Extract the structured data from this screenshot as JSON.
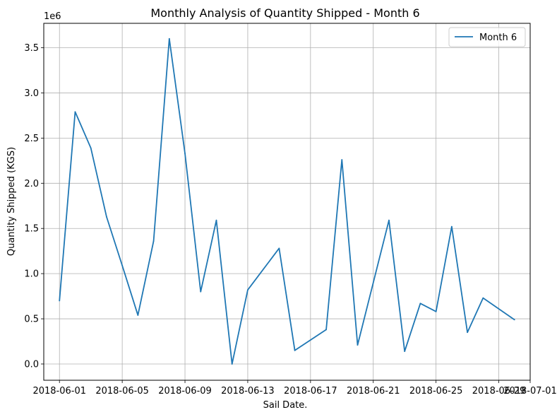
{
  "chart_data": {
    "type": "line",
    "title": "Monthly Analysis of Quantity Shipped - Month 6",
    "xlabel": "Sail Date.",
    "ylabel": "Quantity Shipped (KGS)",
    "y_multiplier_label": "1e6",
    "grid": true,
    "legend_position": "top-right",
    "xlim": [
      "2018-05-31",
      "2018-07-01"
    ],
    "ylim": [
      -0.18,
      3.77
    ],
    "y_unit_scale": 1000000,
    "x_ticks": [
      "2018-06-01",
      "2018-06-05",
      "2018-06-09",
      "2018-06-13",
      "2018-06-17",
      "2018-06-21",
      "2018-06-25",
      "2018-06-29",
      "2018-07-01"
    ],
    "y_ticks": [
      "0.0",
      "0.5",
      "1.0",
      "1.5",
      "2.0",
      "2.5",
      "3.0",
      "3.5"
    ],
    "y_tick_values": [
      0.0,
      0.5,
      1.0,
      1.5,
      2.0,
      2.5,
      3.0,
      3.5
    ],
    "series": [
      {
        "name": "Month 6",
        "color": "#1f77b4",
        "points": [
          {
            "x": "2018-06-01",
            "y": 0.7
          },
          {
            "x": "2018-06-02",
            "y": 2.79
          },
          {
            "x": "2018-06-03",
            "y": 2.39
          },
          {
            "x": "2018-06-04",
            "y": 1.63
          },
          {
            "x": "2018-06-05",
            "y": 1.09
          },
          {
            "x": "2018-06-06",
            "y": 0.54
          },
          {
            "x": "2018-06-07",
            "y": 1.36
          },
          {
            "x": "2018-06-08",
            "y": 3.6
          },
          {
            "x": "2018-06-09",
            "y": 2.33
          },
          {
            "x": "2018-06-10",
            "y": 0.8
          },
          {
            "x": "2018-06-11",
            "y": 1.59
          },
          {
            "x": "2018-06-12",
            "y": 0.0
          },
          {
            "x": "2018-06-13",
            "y": 0.82
          },
          {
            "x": "2018-06-15",
            "y": 1.28
          },
          {
            "x": "2018-06-16",
            "y": 0.15
          },
          {
            "x": "2018-06-18",
            "y": 0.38
          },
          {
            "x": "2018-06-19",
            "y": 2.26
          },
          {
            "x": "2018-06-20",
            "y": 0.21
          },
          {
            "x": "2018-06-22",
            "y": 1.59
          },
          {
            "x": "2018-06-23",
            "y": 0.14
          },
          {
            "x": "2018-06-24",
            "y": 0.67
          },
          {
            "x": "2018-06-25",
            "y": 0.58
          },
          {
            "x": "2018-06-26",
            "y": 1.52
          },
          {
            "x": "2018-06-27",
            "y": 0.35
          },
          {
            "x": "2018-06-28",
            "y": 0.73
          },
          {
            "x": "2018-06-30",
            "y": 0.49
          }
        ]
      }
    ]
  }
}
